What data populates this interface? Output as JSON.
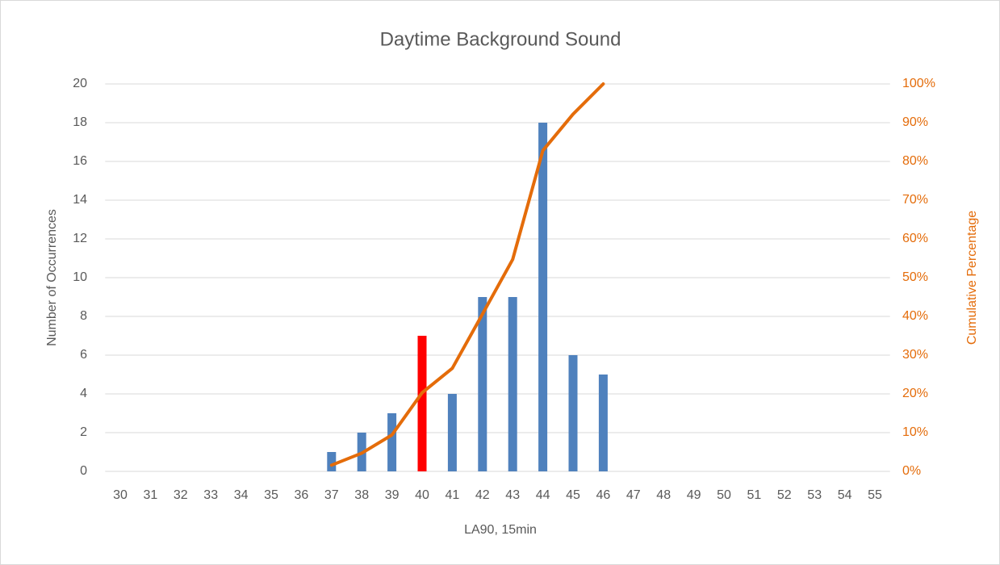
{
  "chart_data": {
    "type": "bar-line",
    "title": "Daytime Background Sound",
    "x_label": "LA90, 15min",
    "y_label": "Number of Occurrences",
    "y2_label": "Cumulative Percentage",
    "categories": [
      "30",
      "31",
      "32",
      "33",
      "34",
      "35",
      "36",
      "37",
      "38",
      "39",
      "40",
      "41",
      "42",
      "43",
      "44",
      "45",
      "46",
      "47",
      "48",
      "49",
      "50",
      "51",
      "52",
      "53",
      "54",
      "55"
    ],
    "series": [
      {
        "type": "bar",
        "color": "#4f81bd",
        "colors": [
          "#4f81bd",
          "#4f81bd",
          "#4f81bd",
          "#4f81bd",
          "#4f81bd",
          "#4f81bd",
          "#4f81bd",
          "#4f81bd",
          "#4f81bd",
          "#4f81bd",
          "#ff0000",
          "#4f81bd",
          "#4f81bd",
          "#4f81bd",
          "#4f81bd",
          "#4f81bd",
          "#4f81bd",
          "#4f81bd",
          "#4f81bd",
          "#4f81bd",
          "#4f81bd",
          "#4f81bd",
          "#4f81bd",
          "#4f81bd",
          "#4f81bd",
          "#4f81bd"
        ],
        "values": [
          0,
          0,
          0,
          0,
          0,
          0,
          0,
          1,
          2,
          3,
          7,
          4,
          9,
          9,
          18,
          6,
          5,
          0,
          0,
          0,
          0,
          0,
          0,
          0,
          0,
          0
        ]
      },
      {
        "type": "line",
        "axis": "y2",
        "color": "#e46c0a",
        "values": [
          null,
          null,
          null,
          null,
          null,
          null,
          null,
          1.6,
          4.7,
          9.4,
          20.3,
          26.6,
          40.6,
          54.7,
          82.8,
          92.2,
          100,
          null,
          null,
          null,
          null,
          null,
          null,
          null,
          null,
          null
        ]
      }
    ],
    "ylim": [
      0,
      20
    ],
    "yticks": [
      0,
      2,
      4,
      6,
      8,
      10,
      12,
      14,
      16,
      18,
      20
    ],
    "y2lim": [
      0,
      100
    ],
    "y2ticks": [
      {
        "value": 0,
        "label": "0%"
      },
      {
        "value": 10,
        "label": "10%"
      },
      {
        "value": 20,
        "label": "20%"
      },
      {
        "value": 30,
        "label": "30%"
      },
      {
        "value": 40,
        "label": "40%"
      },
      {
        "value": 50,
        "label": "50%"
      },
      {
        "value": 60,
        "label": "60%"
      },
      {
        "value": 70,
        "label": "70%"
      },
      {
        "value": 80,
        "label": "80%"
      },
      {
        "value": 90,
        "label": "90%"
      },
      {
        "value": 100,
        "label": "100%"
      }
    ],
    "grid": true
  }
}
